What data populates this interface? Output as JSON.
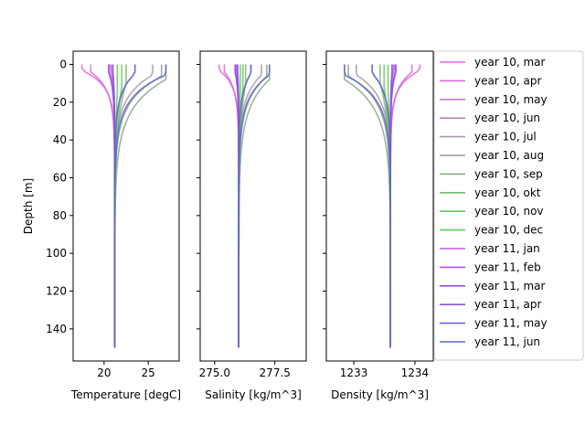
{
  "chart_data": [
    {
      "type": "line",
      "xlabel": "Temperature [degC]",
      "ylabel": "Depth [m]",
      "xticks": [
        "20",
        "25"
      ],
      "yticks": [
        "0",
        "20",
        "40",
        "60",
        "80",
        "100",
        "120",
        "140"
      ],
      "ylim": [
        157,
        -7
      ],
      "profile": {
        "surface": "varies by month",
        "deep_value": 21.2,
        "max_depth": 150
      }
    },
    {
      "type": "line",
      "xlabel": "Salinity [kg/m^3]",
      "xticks": [
        "275.0",
        "277.5"
      ],
      "profile": {
        "deep_value": 276.0,
        "max_depth": 150
      }
    },
    {
      "type": "line",
      "xlabel": "Density [kg/m^3]",
      "xticks": [
        "1233",
        "1234"
      ],
      "profile": {
        "deep_value": 1233.6,
        "max_depth": 150
      }
    }
  ],
  "legend": [
    {
      "label": "year 10, mar",
      "color": "#e065e0",
      "surface_t": 17.5,
      "mld": 8
    },
    {
      "label": "year 10, apr",
      "color": "#d46cd8",
      "surface_t": 18.5,
      "mld": 10
    },
    {
      "label": "year 10, may",
      "color": "#c878c8",
      "surface_t": 21.0,
      "mld": 12
    },
    {
      "label": "year 10, jun",
      "color": "#b888b8",
      "surface_t": 23.5,
      "mld": 12
    },
    {
      "label": "year 10, jul",
      "color": "#a896a8",
      "surface_t": 25.5,
      "mld": 14
    },
    {
      "label": "year 10, aug",
      "color": "#989898",
      "surface_t": 26.5,
      "mld": 16
    },
    {
      "label": "year 10, sep",
      "color": "#88a888",
      "surface_t": 27.0,
      "mld": 20
    },
    {
      "label": "year 10, okt",
      "color": "#78b878",
      "surface_t": 22.5,
      "mld": 26
    },
    {
      "label": "year 10, nov",
      "color": "#68c868",
      "surface_t": 22.0,
      "mld": 30
    },
    {
      "label": "year 10, dec",
      "color": "#58d058",
      "surface_t": 21.5,
      "mld": 36
    },
    {
      "label": "year 11, jan",
      "color": "#c458f0",
      "surface_t": 20.8,
      "mld": 8
    },
    {
      "label": "year 11, feb",
      "color": "#b050e0",
      "surface_t": 20.5,
      "mld": 10
    },
    {
      "label": "year 11, mar",
      "color": "#9a4ce8",
      "surface_t": 20.6,
      "mld": 10
    },
    {
      "label": "year 11, apr",
      "color": "#8658d8",
      "surface_t": 21.0,
      "mld": 10
    },
    {
      "label": "year 11, may",
      "color": "#6a60d0",
      "surface_t": 23.5,
      "mld": 12
    },
    {
      "label": "year 11, jun",
      "color": "#5a6ac0",
      "surface_t": 27.0,
      "mld": 14
    }
  ]
}
